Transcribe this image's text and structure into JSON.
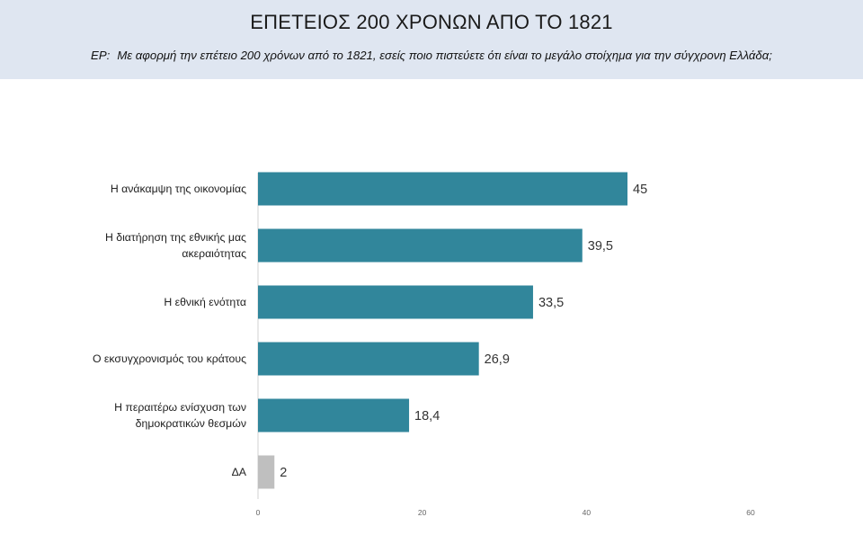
{
  "header": {
    "title": "ΕΠΕΤΕΙΟΣ 200 ΧΡΟΝΩΝ ΑΠΟ ΤΟ 1821",
    "question_prefix": "ΕΡ:",
    "question": "Με αφορμή την επέτειο 200 χρόνων από το 1821, εσείς ποιο πιστεύετε ότι είναι το μεγάλο στοίχημα για την σύγχρονη Ελλάδα;"
  },
  "chart_data": {
    "type": "bar",
    "orientation": "horizontal",
    "categories": [
      [
        "Η ανάκαμψη της οικονομίας"
      ],
      [
        "Η διατήρηση της εθνικής μας",
        "ακεραιότητας"
      ],
      [
        "Η εθνική ενότητα"
      ],
      [
        "Ο εκσυγχρονισμός του κράτους"
      ],
      [
        "Η περαιτέρω ενίσχυση των",
        "δημοκρατικών θεσμών"
      ],
      [
        "ΔΑ"
      ]
    ],
    "values": [
      45,
      39.5,
      33.5,
      26.9,
      18.4,
      2
    ],
    "value_labels": [
      "45",
      "39,5",
      "33,5",
      "26,9",
      "18,4",
      "2"
    ],
    "xlim": [
      0,
      60
    ],
    "xticks": [
      0,
      20,
      40,
      60
    ],
    "grid": false,
    "colors": {
      "bar": "#31869b",
      "bar_na": "#bfbfbf",
      "axis": "#d0d0d0",
      "header_bg": "#dfe6f1"
    }
  }
}
